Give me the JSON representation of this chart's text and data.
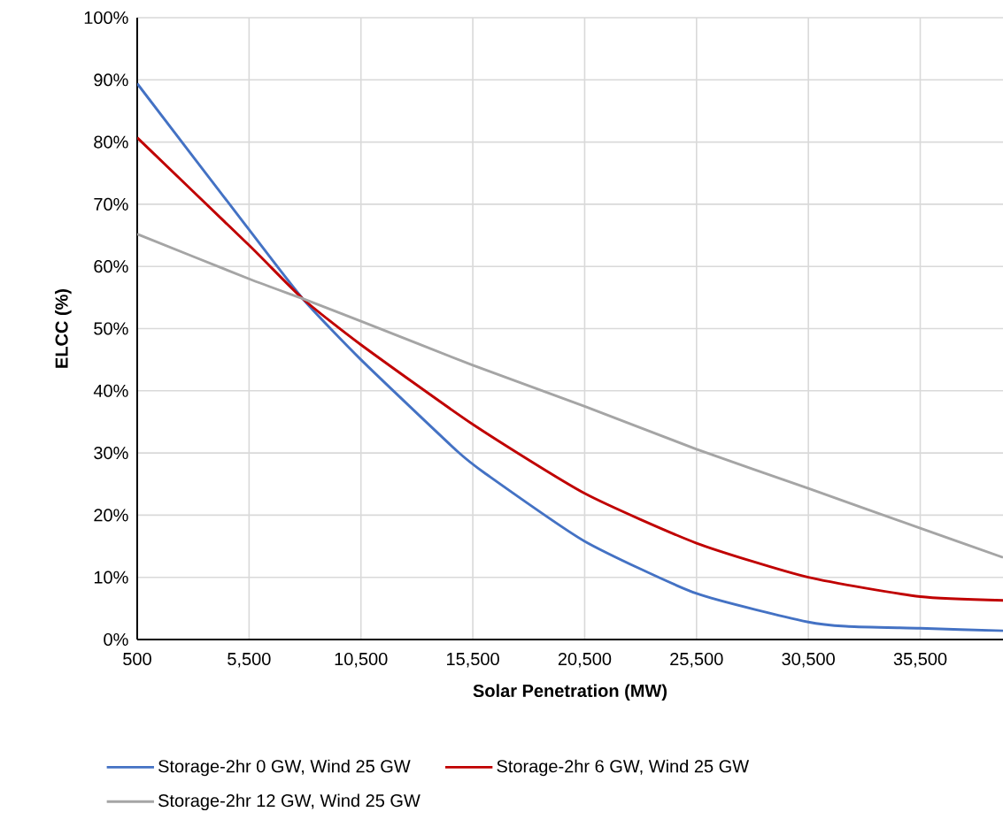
{
  "chart_data": {
    "type": "line",
    "xlabel": "Solar Penetration (MW)",
    "ylabel": "ELCC (%)",
    "xlim": [
      500,
      39200
    ],
    "ylim": [
      0,
      100
    ],
    "xticks": [
      500,
      {
        "value": 5500,
        "label": "5,500"
      },
      {
        "value": 10500,
        "label": "10,500"
      },
      {
        "value": 15500,
        "label": "15,500"
      },
      {
        "value": 20500,
        "label": "20,500"
      },
      {
        "value": 25500,
        "label": "25,500"
      },
      {
        "value": 30500,
        "label": "30,500"
      },
      {
        "value": 35500,
        "label": "35,500"
      }
    ],
    "yticks": [
      {
        "value": 0,
        "label": "0%"
      },
      {
        "value": 10,
        "label": "10%"
      },
      {
        "value": 20,
        "label": "20%"
      },
      {
        "value": 30,
        "label": "30%"
      },
      {
        "value": 40,
        "label": "40%"
      },
      {
        "value": 50,
        "label": "50%"
      },
      {
        "value": 60,
        "label": "60%"
      },
      {
        "value": 70,
        "label": "70%"
      },
      {
        "value": 80,
        "label": "80%"
      },
      {
        "value": 90,
        "label": "90%"
      },
      {
        "value": 100,
        "label": "100%"
      }
    ],
    "grid": true,
    "legend": "bottom",
    "marker": "none",
    "line_style": "solid",
    "series": [
      {
        "name": "Storage-2hr 0 GW, Wind 25 GW",
        "color": "#4472c4",
        "x": [
          500,
          5500,
          7900,
          10500,
          14800,
          16100,
          20500,
          25500,
          30500,
          32300,
          35500,
          39200
        ],
        "values": [
          89.4,
          65.9,
          54.8,
          45.0,
          30.3,
          26.6,
          15.8,
          7.4,
          2.8,
          2.1,
          1.8,
          1.4
        ]
      },
      {
        "name": "Storage-2hr 6 GW, Wind 25 GW",
        "color": "#c00000",
        "x": [
          500,
          5500,
          7900,
          10500,
          15500,
          20500,
          25500,
          30500,
          35500,
          39200
        ],
        "values": [
          80.7,
          63.4,
          54.8,
          47.4,
          34.6,
          23.5,
          15.5,
          10.0,
          6.9,
          6.3
        ]
      },
      {
        "name": "Storage-2hr 12 GW, Wind 25 GW",
        "color": "#a5a5a5",
        "x": [
          500,
          5500,
          7900,
          10500,
          15500,
          20500,
          25500,
          30500,
          35500,
          39200
        ],
        "values": [
          65.2,
          58.0,
          54.8,
          51.2,
          44.1,
          37.5,
          30.6,
          24.3,
          17.9,
          13.2
        ]
      }
    ]
  }
}
